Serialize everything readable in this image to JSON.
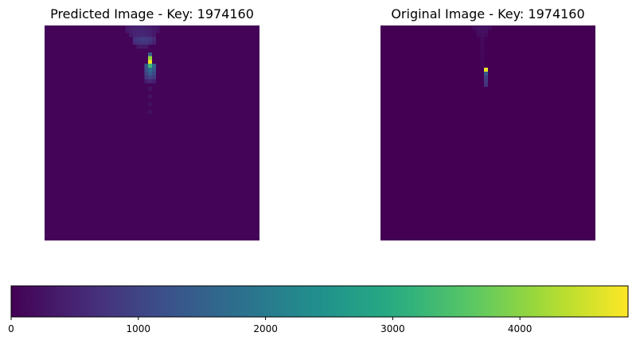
{
  "chart_data": [
    {
      "type": "heatmap",
      "title": "Predicted Image - Key: 1974160",
      "grid": false,
      "axes_visible": false,
      "rows": 56,
      "cols": 56,
      "background_value": 60,
      "cells": [
        {
          "r": 0,
          "c": 21,
          "v": 350
        },
        {
          "r": 0,
          "c": 22,
          "v": 430
        },
        {
          "r": 0,
          "c": 23,
          "v": 470
        },
        {
          "r": 0,
          "c": 24,
          "v": 480
        },
        {
          "r": 0,
          "c": 25,
          "v": 470
        },
        {
          "r": 0,
          "c": 26,
          "v": 440
        },
        {
          "r": 0,
          "c": 27,
          "v": 400
        },
        {
          "r": 0,
          "c": 28,
          "v": 340
        },
        {
          "r": 0,
          "c": 29,
          "v": 280
        },
        {
          "r": 1,
          "c": 21,
          "v": 320
        },
        {
          "r": 1,
          "c": 22,
          "v": 420
        },
        {
          "r": 1,
          "c": 23,
          "v": 480
        },
        {
          "r": 1,
          "c": 24,
          "v": 500
        },
        {
          "r": 1,
          "c": 25,
          "v": 490
        },
        {
          "r": 1,
          "c": 26,
          "v": 460
        },
        {
          "r": 1,
          "c": 27,
          "v": 420
        },
        {
          "r": 1,
          "c": 28,
          "v": 350
        },
        {
          "r": 1,
          "c": 29,
          "v": 260
        },
        {
          "r": 2,
          "c": 22,
          "v": 380
        },
        {
          "r": 2,
          "c": 23,
          "v": 460
        },
        {
          "r": 2,
          "c": 24,
          "v": 520
        },
        {
          "r": 2,
          "c": 25,
          "v": 530
        },
        {
          "r": 2,
          "c": 26,
          "v": 500
        },
        {
          "r": 2,
          "c": 27,
          "v": 440
        },
        {
          "r": 2,
          "c": 28,
          "v": 330
        },
        {
          "r": 3,
          "c": 23,
          "v": 700
        },
        {
          "r": 3,
          "c": 24,
          "v": 820
        },
        {
          "r": 3,
          "c": 25,
          "v": 880
        },
        {
          "r": 3,
          "c": 26,
          "v": 850
        },
        {
          "r": 3,
          "c": 27,
          "v": 760
        },
        {
          "r": 3,
          "c": 28,
          "v": 560
        },
        {
          "r": 4,
          "c": 23,
          "v": 600
        },
        {
          "r": 4,
          "c": 24,
          "v": 700
        },
        {
          "r": 4,
          "c": 25,
          "v": 740
        },
        {
          "r": 4,
          "c": 26,
          "v": 720
        },
        {
          "r": 4,
          "c": 27,
          "v": 640
        },
        {
          "r": 4,
          "c": 28,
          "v": 470
        },
        {
          "r": 5,
          "c": 24,
          "v": 320
        },
        {
          "r": 5,
          "c": 25,
          "v": 340
        },
        {
          "r": 5,
          "c": 26,
          "v": 330
        },
        {
          "r": 7,
          "c": 27,
          "v": 1500
        },
        {
          "r": 8,
          "c": 27,
          "v": 4100
        },
        {
          "r": 9,
          "c": 27,
          "v": 4800
        },
        {
          "r": 10,
          "c": 26,
          "v": 1300
        },
        {
          "r": 10,
          "c": 27,
          "v": 3300
        },
        {
          "r": 10,
          "c": 28,
          "v": 1500
        },
        {
          "r": 11,
          "c": 26,
          "v": 1200
        },
        {
          "r": 11,
          "c": 27,
          "v": 1700
        },
        {
          "r": 11,
          "c": 28,
          "v": 1300
        },
        {
          "r": 12,
          "c": 26,
          "v": 1000
        },
        {
          "r": 12,
          "c": 27,
          "v": 1400
        },
        {
          "r": 12,
          "c": 28,
          "v": 1100
        },
        {
          "r": 13,
          "c": 26,
          "v": 800
        },
        {
          "r": 13,
          "c": 27,
          "v": 1000
        },
        {
          "r": 13,
          "c": 28,
          "v": 850
        },
        {
          "r": 14,
          "c": 26,
          "v": 420
        },
        {
          "r": 14,
          "c": 27,
          "v": 520
        },
        {
          "r": 14,
          "c": 28,
          "v": 440
        },
        {
          "r": 16,
          "c": 27,
          "v": 260
        },
        {
          "r": 18,
          "c": 27,
          "v": 240
        },
        {
          "r": 20,
          "c": 27,
          "v": 230
        },
        {
          "r": 22,
          "c": 27,
          "v": 210
        }
      ]
    },
    {
      "type": "heatmap",
      "title": "Original Image - Key: 1974160",
      "grid": false,
      "axes_visible": false,
      "rows": 56,
      "cols": 56,
      "background_value": 0,
      "cells": [
        {
          "r": 0,
          "c": 24,
          "v": 180
        },
        {
          "r": 0,
          "c": 25,
          "v": 220
        },
        {
          "r": 0,
          "c": 26,
          "v": 230
        },
        {
          "r": 0,
          "c": 27,
          "v": 220
        },
        {
          "r": 0,
          "c": 28,
          "v": 180
        },
        {
          "r": 1,
          "c": 25,
          "v": 200
        },
        {
          "r": 1,
          "c": 26,
          "v": 220
        },
        {
          "r": 1,
          "c": 27,
          "v": 200
        },
        {
          "r": 2,
          "c": 25,
          "v": 160
        },
        {
          "r": 2,
          "c": 26,
          "v": 180
        },
        {
          "r": 2,
          "c": 27,
          "v": 160
        },
        {
          "r": 3,
          "c": 26,
          "v": 150
        },
        {
          "r": 4,
          "c": 26,
          "v": 130
        },
        {
          "r": 5,
          "c": 26,
          "v": 110
        },
        {
          "r": 6,
          "c": 26,
          "v": 110
        },
        {
          "r": 7,
          "c": 26,
          "v": 100
        },
        {
          "r": 8,
          "c": 26,
          "v": 100
        },
        {
          "r": 9,
          "c": 26,
          "v": 90
        },
        {
          "r": 10,
          "c": 26,
          "v": 90
        },
        {
          "r": 11,
          "c": 27,
          "v": 4700
        },
        {
          "r": 12,
          "c": 27,
          "v": 1400
        },
        {
          "r": 13,
          "c": 27,
          "v": 900
        },
        {
          "r": 14,
          "c": 27,
          "v": 850
        },
        {
          "r": 15,
          "c": 27,
          "v": 700
        }
      ]
    },
    {
      "type": "colorbar",
      "orientation": "horizontal",
      "colormap": "viridis",
      "range": [
        0,
        4850
      ],
      "ticks": [
        0,
        1000,
        2000,
        3000,
        4000
      ],
      "tick_labels": [
        "0",
        "1000",
        "2000",
        "3000",
        "4000"
      ]
    }
  ]
}
